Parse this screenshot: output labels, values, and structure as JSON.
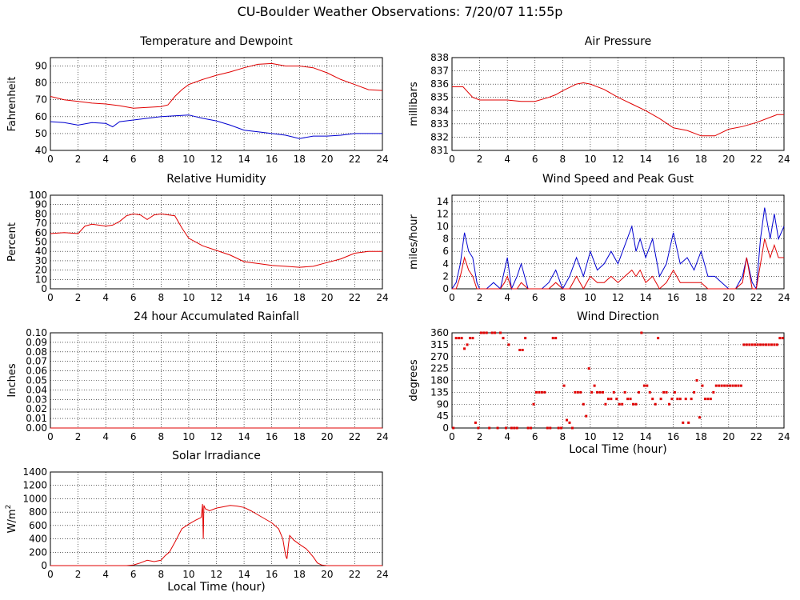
{
  "page_title": "CU-Boulder Weather Observations: 7/20/07 11:55p",
  "colors": {
    "red": "#e00000",
    "blue": "#0000d0",
    "grid": "#000000"
  },
  "chart_data": [
    {
      "id": "temp",
      "type": "line",
      "title": "Temperature and Dewpoint",
      "ylabel": "Fahrenheit",
      "xlabel": "",
      "xlim": [
        0,
        24
      ],
      "x_ticks": [
        0,
        2,
        4,
        6,
        8,
        10,
        12,
        14,
        16,
        18,
        20,
        22,
        24
      ],
      "ylim": [
        40,
        95
      ],
      "y_ticks": [
        40,
        50,
        60,
        70,
        80,
        90
      ],
      "grid": true,
      "series": [
        {
          "color": "#e00000",
          "x": [
            0,
            1,
            2,
            3,
            4,
            5,
            6,
            7,
            8,
            8.5,
            9,
            9.5,
            10,
            11,
            12,
            13,
            14,
            15,
            16,
            17,
            18,
            19,
            20,
            21,
            22,
            23,
            24
          ],
          "y": [
            72,
            70,
            69,
            68,
            67.5,
            66.5,
            65,
            65.5,
            66,
            67,
            72,
            76,
            79,
            82,
            84.5,
            86.5,
            89,
            91,
            91.5,
            90,
            90,
            89,
            86,
            82,
            79,
            76,
            75.5
          ]
        },
        {
          "color": "#0000d0",
          "x": [
            0,
            1,
            2,
            3,
            4,
            4.5,
            5,
            6,
            7,
            8,
            9,
            10,
            11,
            12,
            13,
            14,
            15,
            16,
            17,
            18,
            19,
            20,
            21,
            22,
            23,
            24
          ],
          "y": [
            57,
            56.5,
            55,
            56.5,
            56,
            54,
            57,
            58,
            59,
            60,
            60.5,
            61,
            59,
            57.5,
            55,
            52,
            51,
            50,
            49,
            47,
            48.5,
            48.5,
            49,
            50,
            50,
            50
          ]
        }
      ]
    },
    {
      "id": "pressure",
      "type": "line",
      "title": "Air Pressure",
      "ylabel": "millibars",
      "xlabel": "",
      "xlim": [
        0,
        24
      ],
      "x_ticks": [
        0,
        2,
        4,
        6,
        8,
        10,
        12,
        14,
        16,
        18,
        20,
        22,
        24
      ],
      "ylim": [
        831,
        838
      ],
      "y_ticks": [
        831,
        832,
        833,
        834,
        835,
        836,
        837,
        838
      ],
      "grid": true,
      "series": [
        {
          "color": "#e00000",
          "x": [
            0,
            0.8,
            1.5,
            2,
            3,
            4,
            5,
            6,
            7,
            7.5,
            8,
            9,
            9.5,
            10,
            11,
            12,
            13,
            14,
            15,
            16,
            17,
            18,
            19,
            20,
            21,
            22,
            23,
            23.5,
            24
          ],
          "y": [
            835.8,
            835.8,
            835,
            834.8,
            834.8,
            834.8,
            834.7,
            834.7,
            835,
            835.2,
            835.5,
            836,
            836.1,
            836,
            835.6,
            835,
            834.5,
            834,
            833.4,
            832.7,
            832.5,
            832.1,
            832.1,
            832.6,
            832.8,
            833.1,
            833.5,
            833.7,
            833.7
          ]
        }
      ]
    },
    {
      "id": "humidity",
      "type": "line",
      "title": "Relative Humidity",
      "ylabel": "Percent",
      "xlabel": "",
      "xlim": [
        0,
        24
      ],
      "x_ticks": [
        0,
        2,
        4,
        6,
        8,
        10,
        12,
        14,
        16,
        18,
        20,
        22,
        24
      ],
      "ylim": [
        0,
        100
      ],
      "y_ticks": [
        0,
        10,
        20,
        30,
        40,
        50,
        60,
        70,
        80,
        90,
        100
      ],
      "grid": true,
      "series": [
        {
          "color": "#e00000",
          "x": [
            0,
            1,
            2,
            2.5,
            3,
            4,
            4.5,
            5,
            5.5,
            6,
            6.5,
            7,
            7.5,
            8,
            9,
            9.5,
            10,
            11,
            12,
            13,
            14,
            15,
            16,
            17,
            18,
            19,
            20,
            21,
            22,
            23,
            24
          ],
          "y": [
            59,
            60,
            59,
            67,
            69,
            67,
            68,
            72,
            78,
            80,
            79,
            74,
            79,
            80,
            78,
            65,
            54,
            46,
            41,
            36,
            29,
            27,
            25,
            24,
            23,
            24,
            28,
            32,
            38,
            40,
            40
          ]
        }
      ]
    },
    {
      "id": "wind",
      "type": "line",
      "title": "Wind Speed and Peak Gust",
      "ylabel": "miles/hour",
      "xlabel": "",
      "xlim": [
        0,
        24
      ],
      "x_ticks": [
        0,
        2,
        4,
        6,
        8,
        10,
        12,
        14,
        16,
        18,
        20,
        22,
        24
      ],
      "ylim": [
        0,
        15
      ],
      "y_ticks": [
        0,
        2,
        4,
        6,
        8,
        10,
        12,
        14
      ],
      "grid": true,
      "series": [
        {
          "color": "#0000d0",
          "x": [
            0,
            0.3,
            0.6,
            0.9,
            1.2,
            1.5,
            1.8,
            2.0,
            2.5,
            3.0,
            3.5,
            3.8,
            4.0,
            4.3,
            4.7,
            5.0,
            5.5,
            6.0,
            6.5,
            7.0,
            7.5,
            8.0,
            8.5,
            9.0,
            9.5,
            10.0,
            10.5,
            11.0,
            11.5,
            12.0,
            12.5,
            13.0,
            13.3,
            13.6,
            14.0,
            14.5,
            15.0,
            15.5,
            16.0,
            16.5,
            17.0,
            17.5,
            18.0,
            18.5,
            19.0,
            19.5,
            20.0,
            20.5,
            21.0,
            21.3,
            21.7,
            22.0,
            22.3,
            22.6,
            23.0,
            23.3,
            23.6,
            24.0
          ],
          "y": [
            0,
            1,
            4,
            9,
            6,
            5,
            1,
            0,
            0,
            1,
            0,
            3,
            5,
            0,
            2,
            4,
            0,
            0,
            0,
            1,
            3,
            0,
            2,
            5,
            2,
            6,
            3,
            4,
            6,
            4,
            7,
            10,
            6,
            8,
            5,
            8,
            2,
            4,
            9,
            4,
            5,
            3,
            6,
            2,
            2,
            1,
            0,
            0,
            2,
            5,
            1,
            0,
            8,
            13,
            8,
            12,
            8,
            10
          ]
        },
        {
          "color": "#e00000",
          "x": [
            0,
            0.3,
            0.6,
            0.9,
            1.2,
            1.5,
            1.8,
            2.0,
            2.5,
            3.0,
            3.5,
            3.8,
            4.0,
            4.3,
            4.7,
            5.0,
            5.5,
            6.0,
            6.5,
            7.0,
            7.5,
            8.0,
            8.5,
            9.0,
            9.5,
            10.0,
            10.5,
            11.0,
            11.5,
            12.0,
            12.5,
            13.0,
            13.3,
            13.6,
            14.0,
            14.5,
            15.0,
            15.5,
            16.0,
            16.5,
            17.0,
            17.5,
            18.0,
            18.5,
            19.0,
            19.5,
            20.0,
            20.5,
            21.0,
            21.3,
            21.7,
            22.0,
            22.3,
            22.6,
            23.0,
            23.3,
            23.6,
            24.0
          ],
          "y": [
            0,
            0,
            2,
            5,
            3,
            2,
            0,
            0,
            0,
            0,
            0,
            1,
            2,
            0,
            0,
            1,
            0,
            0,
            0,
            0,
            1,
            0,
            0,
            2,
            0,
            2,
            1,
            1,
            2,
            1,
            2,
            3,
            2,
            3,
            1,
            2,
            0,
            1,
            3,
            1,
            1,
            1,
            1,
            0,
            0,
            0,
            0,
            0,
            1,
            5,
            0,
            0,
            4,
            8,
            5,
            7,
            5,
            5
          ]
        }
      ]
    },
    {
      "id": "rain",
      "type": "line",
      "title": "24 hour Accumulated Rainfall",
      "ylabel": "Inches",
      "xlabel": "",
      "xlim": [
        0,
        24
      ],
      "x_ticks": [
        0,
        2,
        4,
        6,
        8,
        10,
        12,
        14,
        16,
        18,
        20,
        22,
        24
      ],
      "ylim": [
        0,
        0.1
      ],
      "y_ticks": [
        "0.00",
        "0.01",
        "0.02",
        "0.03",
        "0.04",
        "0.05",
        "0.06",
        "0.07",
        "0.08",
        "0.09",
        "0.10"
      ],
      "grid": true,
      "series": [
        {
          "color": "#e00000",
          "x": [
            0,
            24
          ],
          "y": [
            0,
            0
          ]
        }
      ]
    },
    {
      "id": "direction",
      "type": "scatter",
      "title": "Wind Direction",
      "ylabel": "degrees",
      "xlabel": "Local Time (hour)",
      "xlim": [
        0,
        24
      ],
      "x_ticks": [
        0,
        2,
        4,
        6,
        8,
        10,
        12,
        14,
        16,
        18,
        20,
        22,
        24
      ],
      "ylim": [
        0,
        360
      ],
      "y_ticks": [
        0,
        45,
        90,
        135,
        180,
        225,
        270,
        315,
        360
      ],
      "grid": true,
      "series": [
        {
          "color": "#e00000",
          "x": [
            0.1,
            0.3,
            0.5,
            0.7,
            0.9,
            1.1,
            1.3,
            1.5,
            1.7,
            1.9,
            2.1,
            2.3,
            2.5,
            2.7,
            2.9,
            3.1,
            3.3,
            3.5,
            3.7,
            3.9,
            4.1,
            4.3,
            4.5,
            4.7,
            4.9,
            5.1,
            5.3,
            5.5,
            5.7,
            5.9,
            6.1,
            6.3,
            6.5,
            6.7,
            6.9,
            7.1,
            7.3,
            7.5,
            7.7,
            7.9,
            8.1,
            8.3,
            8.5,
            8.7,
            8.9,
            9.1,
            9.3,
            9.5,
            9.7,
            9.9,
            10.1,
            10.3,
            10.5,
            10.7,
            10.9,
            11.1,
            11.3,
            11.5,
            11.7,
            11.9,
            12.1,
            12.3,
            12.5,
            12.7,
            12.9,
            13.1,
            13.3,
            13.5,
            13.7,
            13.9,
            14.1,
            14.3,
            14.5,
            14.7,
            14.9,
            15.1,
            15.3,
            15.5,
            15.7,
            15.9,
            16.1,
            16.3,
            16.5,
            16.7,
            16.9,
            17.1,
            17.3,
            17.5,
            17.7,
            17.9,
            18.1,
            18.3,
            18.5,
            18.7,
            18.9,
            19.1,
            19.3,
            19.5,
            19.7,
            19.9,
            20.1,
            20.3,
            20.5,
            20.7,
            20.9,
            21.1,
            21.3,
            21.5,
            21.7,
            21.9,
            22.1,
            22.3,
            22.5,
            22.7,
            22.9,
            23.1,
            23.3,
            23.5,
            23.7,
            23.9
          ],
          "y": [
            0,
            340,
            340,
            340,
            300,
            315,
            340,
            340,
            20,
            0,
            360,
            360,
            360,
            0,
            360,
            360,
            0,
            360,
            340,
            0,
            315,
            0,
            0,
            0,
            295,
            295,
            340,
            0,
            0,
            90,
            135,
            135,
            135,
            135,
            0,
            0,
            340,
            340,
            0,
            0,
            160,
            30,
            20,
            0,
            135,
            135,
            135,
            90,
            45,
            225,
            135,
            160,
            135,
            135,
            135,
            90,
            110,
            110,
            135,
            110,
            90,
            90,
            135,
            110,
            110,
            90,
            90,
            135,
            360,
            160,
            160,
            135,
            110,
            90,
            340,
            110,
            135,
            135,
            90,
            110,
            135,
            110,
            110,
            20,
            110,
            20,
            110,
            135,
            180,
            40,
            160,
            110,
            110,
            110,
            135,
            160,
            160,
            160,
            160,
            160,
            160,
            160,
            160,
            160,
            160,
            315,
            315,
            315,
            315,
            315,
            315,
            315,
            315,
            315,
            315,
            315,
            315,
            315,
            340,
            340
          ]
        }
      ]
    },
    {
      "id": "solar",
      "type": "line",
      "title": "Solar Irradiance",
      "ylabel": "W/m",
      "ylabel_sup": "2",
      "xlabel": "Local Time (hour)",
      "xlim": [
        0,
        24
      ],
      "x_ticks": [
        0,
        2,
        4,
        6,
        8,
        10,
        12,
        14,
        16,
        18,
        20,
        22,
        24
      ],
      "ylim": [
        0,
        1400
      ],
      "y_ticks": [
        0,
        200,
        400,
        600,
        800,
        1000,
        1200,
        1400
      ],
      "grid": true,
      "series": [
        {
          "color": "#e00000",
          "x": [
            0,
            5.5,
            6,
            6.5,
            7,
            7.5,
            8,
            8.3,
            8.6,
            9,
            9.5,
            10,
            10.5,
            10.9,
            11,
            11.05,
            11.1,
            11.2,
            11.5,
            12,
            12.5,
            13,
            13.5,
            14,
            14.5,
            15,
            15.5,
            16,
            16.5,
            16.8,
            17,
            17.1,
            17.2,
            17.3,
            17.6,
            18,
            18.5,
            19,
            19.3,
            19.6,
            20,
            24
          ],
          "y": [
            0,
            0,
            10,
            40,
            80,
            60,
            80,
            150,
            200,
            350,
            550,
            620,
            680,
            720,
            920,
            400,
            900,
            850,
            820,
            860,
            880,
            900,
            890,
            870,
            820,
            760,
            700,
            640,
            550,
            400,
            150,
            100,
            300,
            450,
            380,
            320,
            250,
            130,
            40,
            10,
            0,
            0
          ]
        }
      ]
    }
  ]
}
